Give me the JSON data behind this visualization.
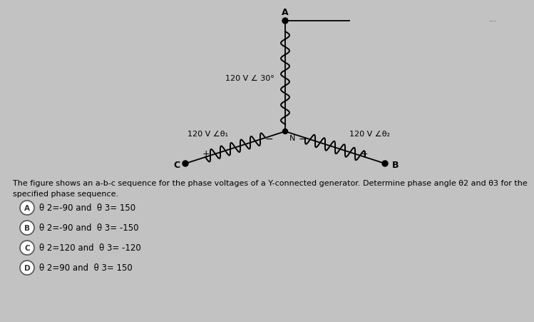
{
  "bg_color": "#c2c2c2",
  "description_line1": "The figure shows an a-b-c sequence for the phase voltages of a Y-connected generator. Determine phase angle θ2 and θ3 for the",
  "description_line2": "specified phase sequence.",
  "options": [
    {
      "label": "A",
      "text": "θ 2=-90 and  θ 3= 150"
    },
    {
      "label": "B",
      "text": "θ 2=-90 and  θ 3= -150"
    },
    {
      "label": "C",
      "text": "θ 2=120 and  θ 3= -120"
    },
    {
      "label": "D",
      "text": "θ 2=90 and  θ 3= 150"
    }
  ],
  "label_120_30": "120 V ∠ 30°",
  "label_120_th1": "120 V ∠θ₁",
  "label_120_th2": "120 V ∠θ₂",
  "dots": "..."
}
